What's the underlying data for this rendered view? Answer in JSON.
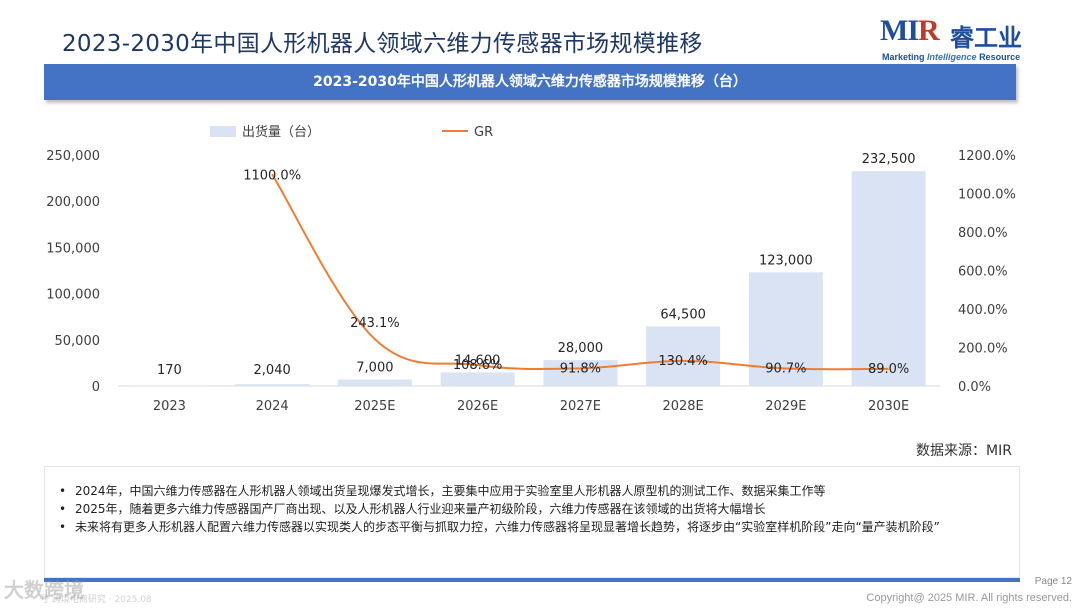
{
  "page": {
    "title": "2023-2030年中国人形机器人领域六维力传感器市场规模推移",
    "chart_header": "2023-2030年中国人形机器人领域六维力传感器市场规模推移（台）",
    "source": "数据来源：MIR",
    "page_number": "Page 12",
    "copyright": "Copyright@ 2025 MIR. All rights reserved.",
    "watermark": "大数跨境",
    "watermark_sub": "号 跨境电商研究 · 2025.08"
  },
  "logo": {
    "main_prefix": "MI",
    "main_r": "R",
    "chinese": "睿工业",
    "sub_a": "Marketing",
    "sub_b": "Intelligence",
    "sub_c": "Resource"
  },
  "colors": {
    "bar": "#dae3f3",
    "line": "#ed7d31",
    "header": "#4472c4",
    "title": "#1f3864"
  },
  "notes": [
    "2024年，中国六维力传感器在人形机器人领域出货呈现爆发式增长，主要集中应用于实验室里人形机器人原型机的测试工作、数据采集工作等",
    "2025年，随着更多六维力传感器国产厂商出现、以及人形机器人行业迎来量产初级阶段，六维力传感器在该领域的出货将大幅增长",
    "未来将有更多人形机器人配置六维力传感器以实现类人的步态平衡与抓取力控，六维力传感器将呈现显著增长趋势，将逐步由“实验室样机阶段”走向“量产装机阶段”"
  ],
  "chart_data": {
    "type": "bar",
    "title": "2023-2030年中国人形机器人领域六维力传感器市场规模推移（台）",
    "categories": [
      "2023",
      "2024",
      "2025E",
      "2026E",
      "2027E",
      "2028E",
      "2029E",
      "2030E"
    ],
    "series": [
      {
        "name": "出货量（台）",
        "type": "bar",
        "axis": "left",
        "values": [
          170,
          2040,
          7000,
          14600,
          28000,
          64500,
          123000,
          232500
        ],
        "labels": [
          "170",
          "2,040",
          "7,000",
          "14,600",
          "28,000",
          "64,500",
          "123,000",
          "232,500"
        ]
      },
      {
        "name": "GR",
        "type": "line",
        "axis": "right",
        "values": [
          null,
          1100.0,
          243.1,
          108.6,
          91.8,
          130.4,
          90.7,
          89.0
        ],
        "labels": [
          "",
          "1100.0%",
          "243.1%",
          "108.6%",
          "91.8%",
          "130.4%",
          "90.7%",
          "89.0%"
        ]
      }
    ],
    "y_left": {
      "min": 0,
      "max": 250000,
      "ticks": [
        "0",
        "50,000",
        "100,000",
        "150,000",
        "200,000",
        "250,000"
      ]
    },
    "y_right": {
      "min": 0,
      "max": 1200,
      "ticks": [
        "0.0%",
        "200.0%",
        "400.0%",
        "600.0%",
        "800.0%",
        "1000.0%",
        "1200.0%"
      ]
    },
    "legend": "top-left",
    "grid": false
  }
}
